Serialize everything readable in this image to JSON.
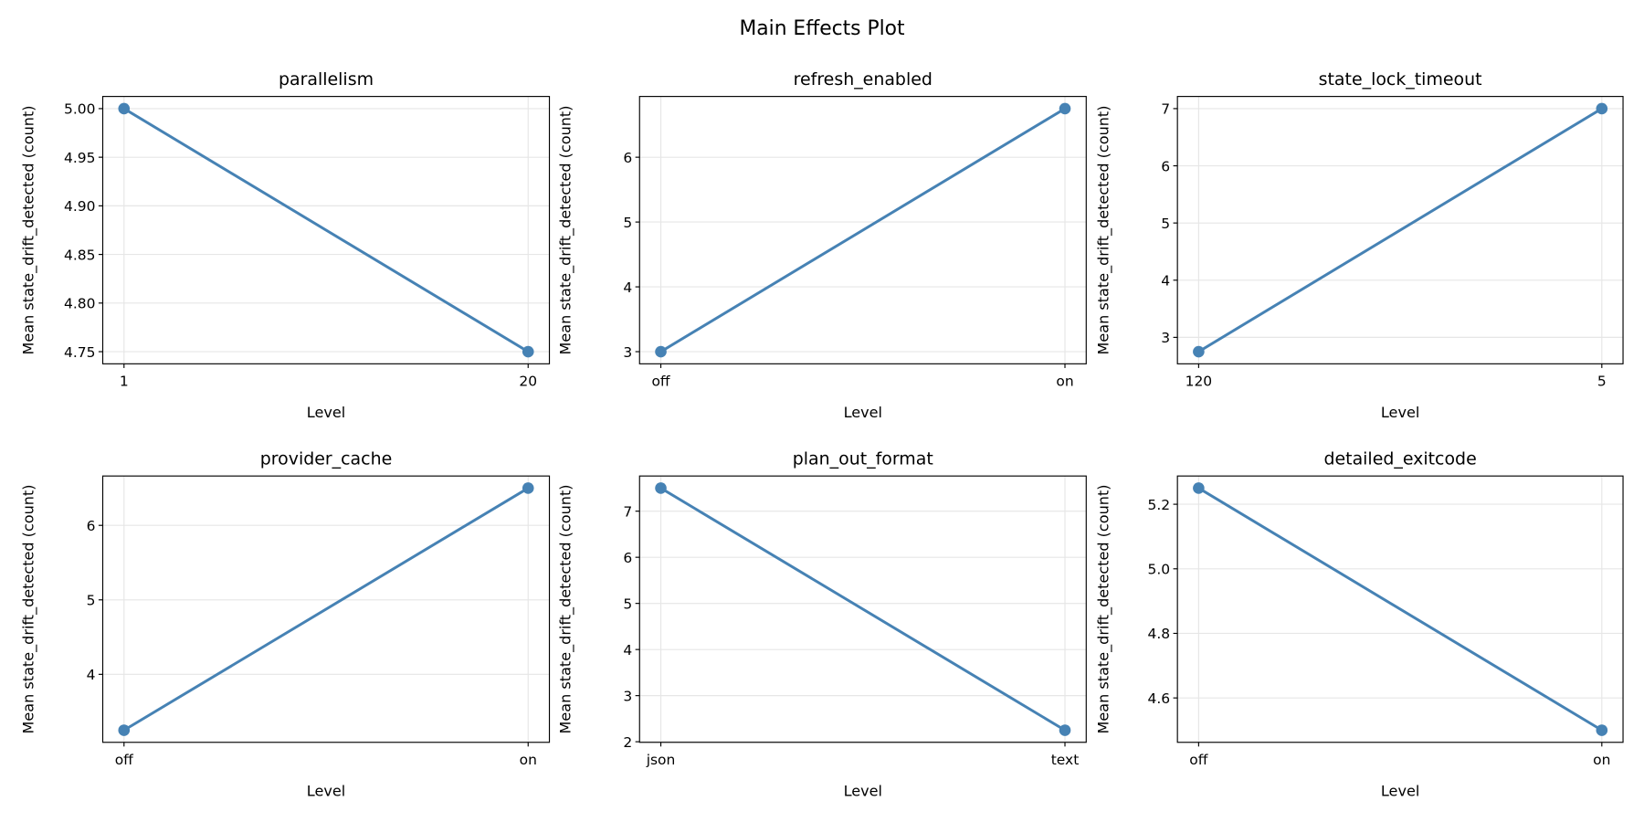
{
  "chart_data": {
    "title": "Main Effects Plot",
    "type": "line",
    "color": "#4682b4",
    "grid": true,
    "panels": [
      {
        "type": "line",
        "title": "parallelism",
        "xlabel": "Level",
        "ylabel": "Mean state_drift_detected (count)",
        "categories": [
          "1",
          "20"
        ],
        "values": [
          5.0,
          4.75
        ],
        "ylim": [
          4.7375,
          5.0125
        ],
        "yticks": [
          "4.75",
          "4.80",
          "4.85",
          "4.90",
          "4.95",
          "5.00"
        ]
      },
      {
        "type": "line",
        "title": "refresh_enabled",
        "xlabel": "Level",
        "ylabel": "Mean state_drift_detected (count)",
        "categories": [
          "off",
          "on"
        ],
        "values": [
          3.0,
          6.75
        ],
        "ylim": [
          2.8125,
          6.9375
        ],
        "yticks": [
          "3",
          "4",
          "5",
          "6"
        ]
      },
      {
        "type": "line",
        "title": "state_lock_timeout",
        "xlabel": "Level",
        "ylabel": "Mean state_drift_detected (count)",
        "categories": [
          "120",
          "5"
        ],
        "values": [
          2.75,
          7.0
        ],
        "ylim": [
          2.5375,
          7.2125
        ],
        "yticks": [
          "3",
          "4",
          "5",
          "6",
          "7"
        ]
      },
      {
        "type": "line",
        "title": "provider_cache",
        "xlabel": "Level",
        "ylabel": "Mean state_drift_detected (count)",
        "categories": [
          "off",
          "on"
        ],
        "values": [
          3.25,
          6.5
        ],
        "ylim": [
          3.0875,
          6.6625
        ],
        "yticks": [
          "4",
          "5",
          "6"
        ]
      },
      {
        "type": "line",
        "title": "plan_out_format",
        "xlabel": "Level",
        "ylabel": "Mean state_drift_detected (count)",
        "categories": [
          "json",
          "text"
        ],
        "values": [
          7.5,
          2.25
        ],
        "ylim": [
          1.9875,
          7.7625
        ],
        "yticks": [
          "2",
          "3",
          "4",
          "5",
          "6",
          "7"
        ]
      },
      {
        "type": "line",
        "title": "detailed_exitcode",
        "xlabel": "Level",
        "ylabel": "Mean state_drift_detected (count)",
        "categories": [
          "off",
          "on"
        ],
        "values": [
          5.25,
          4.5
        ],
        "ylim": [
          4.4625,
          5.2875
        ],
        "yticks": [
          "4.6",
          "4.8",
          "5.0",
          "5.2"
        ]
      }
    ]
  }
}
